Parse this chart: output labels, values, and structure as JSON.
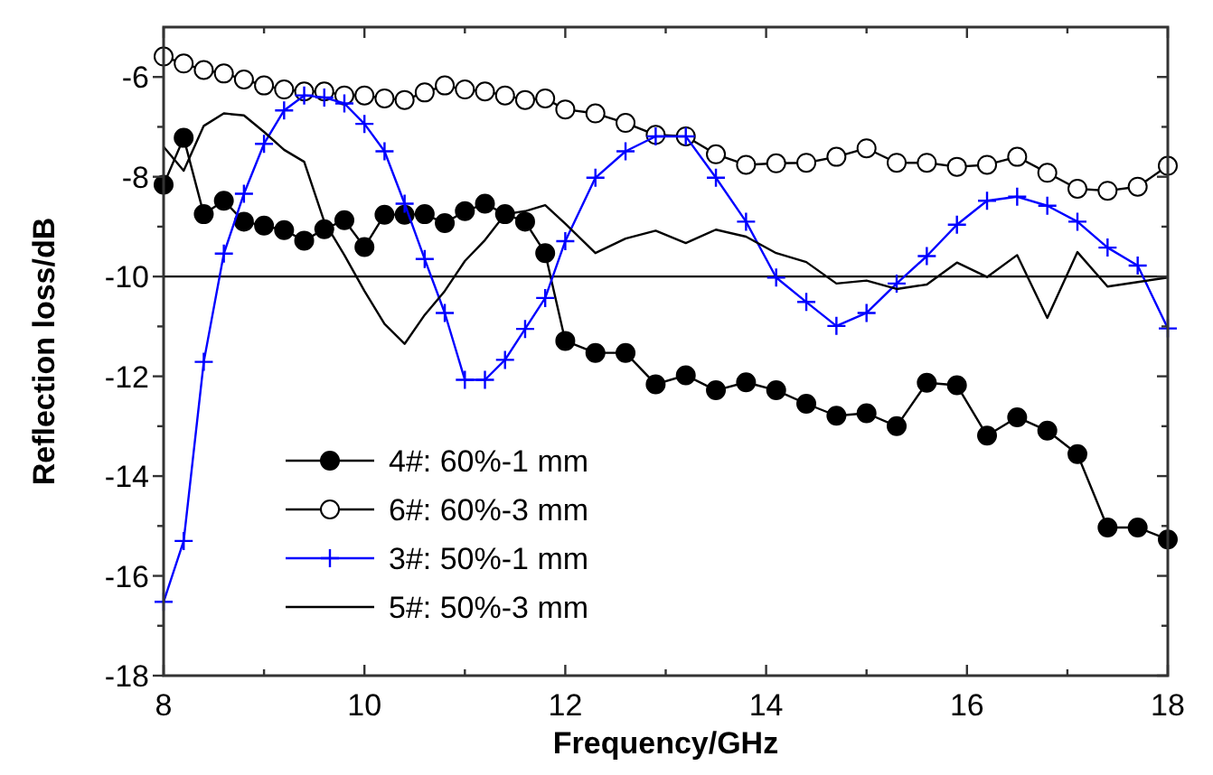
{
  "chart_data": {
    "type": "line",
    "xlabel": "Frequency/GHz",
    "ylabel": "Reflection loss/dB",
    "xlim": [
      8,
      18
    ],
    "ylim": [
      -18,
      -5
    ],
    "xticks": [
      8,
      {
        "value": 9,
        "label": null
      },
      10,
      {
        "value": 11,
        "label": null
      },
      12,
      {
        "value": 13,
        "label": null
      },
      14,
      {
        "value": 15,
        "label": null
      },
      16,
      {
        "value": 17,
        "label": null
      },
      18
    ],
    "yticks": [
      -18,
      {
        "value": -17,
        "label": null
      },
      -16,
      {
        "value": -15,
        "label": null
      },
      -14,
      {
        "value": -13,
        "label": null
      },
      -12,
      {
        "value": -11,
        "label": null
      },
      -10,
      {
        "value": -9,
        "label": null
      },
      -8,
      {
        "value": -7,
        "label": null
      },
      -6
    ],
    "x": [
      8,
      8.2,
      8.4,
      8.6,
      8.8,
      9,
      9.2,
      9.4,
      9.6,
      9.8,
      10,
      10.2,
      10.4,
      10.6,
      10.8,
      11,
      11.2,
      11.4,
      11.6,
      11.8,
      12,
      12.3,
      12.6,
      12.9,
      13.2,
      13.5,
      13.8,
      14.1,
      14.4,
      14.7,
      15,
      15.3,
      15.6,
      15.9,
      16.2,
      16.5,
      16.8,
      17.1,
      17.4,
      17.7,
      18
    ],
    "series": [
      {
        "name": "4#: 60%-1 mm",
        "color": "#000000",
        "marker": "circle",
        "values": [
          -8.16,
          -7.22,
          -8.75,
          -8.48,
          -8.9,
          -8.98,
          -9.07,
          -9.28,
          -9.05,
          -8.87,
          -9.41,
          -8.76,
          -8.76,
          -8.75,
          -8.93,
          -8.69,
          -8.54,
          -8.75,
          -8.9,
          -9.53,
          -11.29,
          -11.53,
          -11.53,
          -12.16,
          -11.98,
          -12.28,
          -12.12,
          -12.28,
          -12.55,
          -12.79,
          -12.74,
          -13.0,
          -12.13,
          -12.18,
          -13.19,
          -12.82,
          -13.09,
          -13.56,
          -15.03,
          -15.03,
          -15.27
        ]
      },
      {
        "name": "6#: 60%-3 mm",
        "color": "#000000",
        "marker": "circle",
        "colors": [
          "#ffffff",
          "#ffffff",
          "#ffffff",
          "#ffffff",
          "#ffffff",
          "#ffffff",
          "#ffffff",
          "#ffffff",
          "#ffffff",
          "#ffffff",
          "#ffffff",
          "#ffffff",
          "#ffffff",
          "#ffffff",
          "#ffffff",
          "#ffffff",
          "#ffffff",
          "#ffffff",
          "#ffffff",
          "#ffffff",
          "#ffffff",
          "#ffffff",
          "#ffffff",
          "#ffffff",
          "#ffffff",
          "#ffffff",
          "#ffffff",
          "#ffffff",
          "#ffffff",
          "#ffffff",
          "#ffffff",
          "#ffffff",
          "#ffffff",
          "#ffffff",
          "#ffffff",
          "#ffffff",
          "#ffffff",
          "#ffffff",
          "#ffffff",
          "#ffffff",
          "#ffffff"
        ],
        "values": [
          -5.59,
          -5.73,
          -5.86,
          -5.93,
          -6.05,
          -6.17,
          -6.25,
          -6.29,
          -6.29,
          -6.37,
          -6.37,
          -6.43,
          -6.46,
          -6.31,
          -6.17,
          -6.25,
          -6.29,
          -6.37,
          -6.46,
          -6.43,
          -6.65,
          -6.73,
          -6.92,
          -7.16,
          -7.19,
          -7.55,
          -7.76,
          -7.73,
          -7.72,
          -7.6,
          -7.43,
          -7.72,
          -7.72,
          -7.8,
          -7.76,
          -7.6,
          -7.92,
          -8.24,
          -8.28,
          -8.2,
          -7.78
        ]
      },
      {
        "name": "3#: 50%-1 mm",
        "color": "#0000ff",
        "marker": "cross",
        "values": [
          -16.52,
          -15.3,
          -11.71,
          -9.54,
          -8.34,
          -7.34,
          -6.67,
          -6.37,
          -6.41,
          -6.53,
          -6.94,
          -7.49,
          -8.54,
          -9.65,
          -10.73,
          -12.07,
          -12.07,
          -11.67,
          -11.05,
          -10.43,
          -9.29,
          -8.02,
          -7.49,
          -7.19,
          -7.19,
          -8.02,
          -8.9,
          -10.02,
          -10.51,
          -10.99,
          -10.73,
          -10.14,
          -9.59,
          -8.96,
          -8.48,
          -8.4,
          -8.58,
          -8.9,
          -9.42,
          -9.78,
          -11.04
        ]
      },
      {
        "name": "5#: 50%-3 mm",
        "color": "#000000",
        "marker": "none",
        "values": [
          -7.4,
          -7.88,
          -6.98,
          -6.73,
          -6.77,
          -7.1,
          -7.46,
          -7.7,
          -8.9,
          -9.57,
          -10.29,
          -10.95,
          -11.35,
          -10.77,
          -10.29,
          -9.69,
          -9.27,
          -8.75,
          -8.69,
          -8.57,
          -8.94,
          -9.53,
          -9.24,
          -9.08,
          -9.33,
          -9.06,
          -9.2,
          -9.53,
          -9.71,
          -10.14,
          -10.08,
          -10.25,
          -10.16,
          -9.72,
          -10.01,
          -9.57,
          -10.83,
          -9.51,
          -10.2,
          -10.11,
          -10.02
        ]
      }
    ],
    "ref_lines": [
      {
        "axis": "y",
        "value": -10,
        "color": "#000000"
      }
    ],
    "legend": "bottom left",
    "grid": false
  }
}
